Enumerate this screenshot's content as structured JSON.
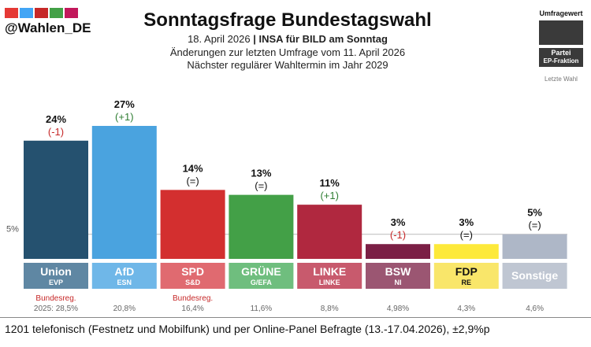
{
  "header": {
    "handle": "@Wahlen_DE",
    "logo_colors": [
      "#e53935",
      "#42a5f5",
      "#c62828",
      "#43a047",
      "#c2185b"
    ],
    "title": "Sonntagsfrage Bundestagswahl",
    "subtitle_date": "18. April 2026",
    "subtitle_sep": " | ",
    "subtitle_pollster": "INSA für BILD am Sonntag",
    "subtitle_change": "Änderungen zur letzten Umfrage vom 11. April 2026",
    "subtitle_next": "Nächster regulärer Wahltermin im Jahr 2029"
  },
  "legend": {
    "poll_value": "Umfragewert",
    "party": "Partei",
    "ep_group": "EP-Fraktion",
    "last_election": "Letzte Wahl"
  },
  "footer": {
    "text": "1201 telefonisch (Festnetz und Mobilfunk) und per Online-Panel Befragte (13.-17.04.2026), ±2,9%p"
  },
  "chart_data": {
    "type": "bar",
    "categories": [
      "Union",
      "AfD",
      "SPD",
      "GRÜNE",
      "LINKE",
      "BSW",
      "FDP",
      "Sonstige"
    ],
    "ep_groups": [
      "EVP",
      "ESN",
      "S&D",
      "G/EFA",
      "LINKE",
      "NI",
      "RE",
      ""
    ],
    "values": [
      24,
      27,
      14,
      13,
      11,
      3,
      3,
      5
    ],
    "value_labels": [
      "24%",
      "27%",
      "14%",
      "13%",
      "11%",
      "3%",
      "3%",
      "5%"
    ],
    "changes": [
      "(-1)",
      "(+1)",
      "(=)",
      "(=)",
      "(+1)",
      "(-1)",
      "(=)",
      "(=)"
    ],
    "change_colors": [
      "#c62828",
      "#2e7d32",
      "#111111",
      "#111111",
      "#2e7d32",
      "#c62828",
      "#111111",
      "#111111"
    ],
    "colors": [
      "#25516f",
      "#4aa3df",
      "#d32f2f",
      "#43a047",
      "#b0283f",
      "#7b1f45",
      "#fde93a",
      "#aeb7c7"
    ],
    "label_colors": [
      "#5f87a3",
      "#6fb7e8",
      "#e06a70",
      "#6fbe7e",
      "#c85a6d",
      "#9b5672",
      "#f9e66a",
      "#bfc6d2"
    ],
    "label_text_colors": [
      "#ffffff",
      "#ffffff",
      "#ffffff",
      "#ffffff",
      "#ffffff",
      "#ffffff",
      "#111111",
      "#ffffff"
    ],
    "last_election": [
      "2025: 28,5%",
      "20,8%",
      "16,4%",
      "11,6%",
      "8,8%",
      "4,98%",
      "4,3%",
      "4,6%"
    ],
    "notes": [
      "Bundesreg.",
      "",
      "Bundesreg.",
      "",
      "",
      "",
      "",
      ""
    ],
    "reference_line": {
      "value": 5,
      "label": "5%"
    },
    "ylim": [
      0,
      30
    ],
    "title": "Sonntagsfrage Bundestagswahl",
    "xlabel": "",
    "ylabel": ""
  }
}
